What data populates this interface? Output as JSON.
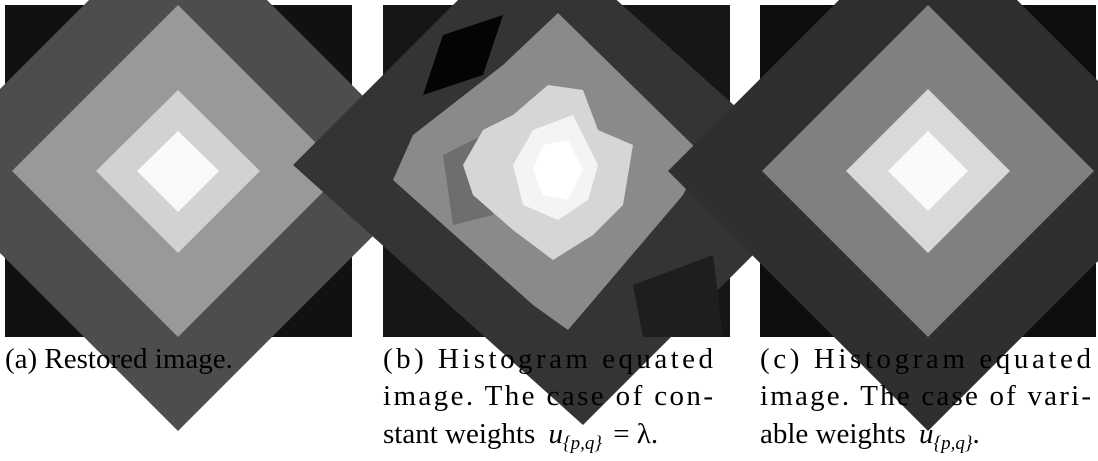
{
  "figures": [
    {
      "lines": [
        "(a) Restored image."
      ]
    },
    {
      "lines": [
        "(b) Histogram equated",
        "image. The case of con-"
      ],
      "math_line": {
        "text": "stant weights",
        "var": "u",
        "sub": "{p,q}",
        "tail": "= λ."
      }
    },
    {
      "lines": [
        "(c) Histogram equated",
        "image. The case of vari-"
      ],
      "math_line": {
        "text": "able weights",
        "var": "u",
        "sub": "{p,q}",
        "tail": "."
      }
    }
  ]
}
